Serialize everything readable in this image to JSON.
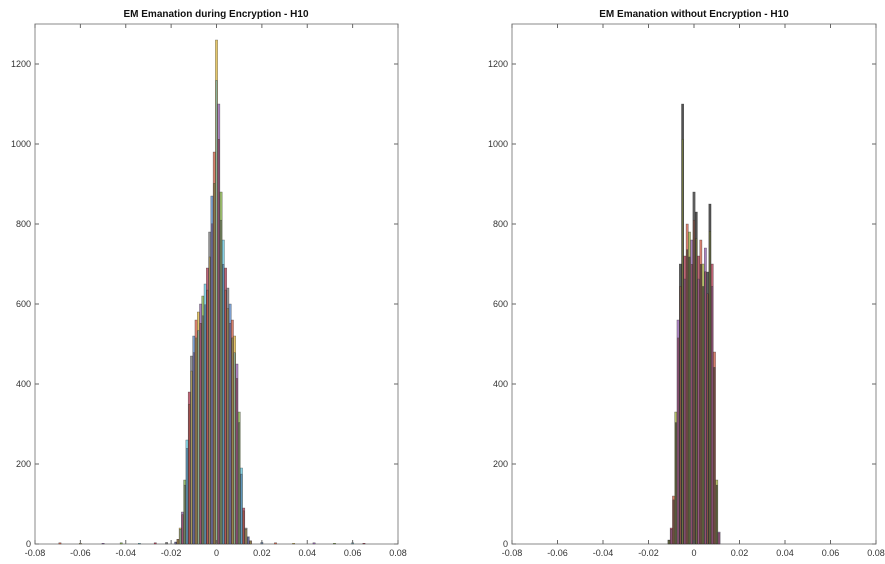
{
  "chart_data": [
    {
      "type": "histogram",
      "title": "EM Emanation during Encryption - H10",
      "xlim": [
        -0.08,
        0.08
      ],
      "ylim": [
        0,
        1300
      ],
      "xticks": [
        -0.08,
        -0.06,
        -0.04,
        -0.02,
        0,
        0.02,
        0.04,
        0.06,
        0.08
      ],
      "xtick_labels": [
        "-0.08",
        "-0.06",
        "-0.04",
        "-0.02",
        "0",
        "0.02",
        "0.04",
        "0.06",
        "0.08"
      ],
      "yticks": [
        0,
        200,
        400,
        600,
        800,
        1000,
        1200
      ],
      "ytick_labels": [
        "0",
        "200",
        "400",
        "600",
        "800",
        "1000",
        "1200"
      ],
      "grid": false,
      "overlaid_series_colors": [
        "#4f7fbf",
        "#c8553d",
        "#d9b33a",
        "#8d5aa8",
        "#7aa63c",
        "#5fc2d9",
        "#a8324a",
        "#6f6f6f"
      ],
      "bin_width": 0.001,
      "bins": [
        {
          "x": -0.018,
          "y": 5
        },
        {
          "x": -0.017,
          "y": 12
        },
        {
          "x": -0.016,
          "y": 40
        },
        {
          "x": -0.015,
          "y": 80
        },
        {
          "x": -0.014,
          "y": 160
        },
        {
          "x": -0.013,
          "y": 260
        },
        {
          "x": -0.012,
          "y": 380
        },
        {
          "x": -0.011,
          "y": 470
        },
        {
          "x": -0.01,
          "y": 520
        },
        {
          "x": -0.009,
          "y": 560
        },
        {
          "x": -0.008,
          "y": 580
        },
        {
          "x": -0.007,
          "y": 600
        },
        {
          "x": -0.006,
          "y": 620
        },
        {
          "x": -0.005,
          "y": 650
        },
        {
          "x": -0.004,
          "y": 690
        },
        {
          "x": -0.003,
          "y": 780
        },
        {
          "x": -0.002,
          "y": 870
        },
        {
          "x": -0.001,
          "y": 980
        },
        {
          "x": 0.0,
          "y": 1260
        },
        {
          "x": 0.001,
          "y": 1100
        },
        {
          "x": 0.002,
          "y": 880
        },
        {
          "x": 0.003,
          "y": 760
        },
        {
          "x": 0.004,
          "y": 690
        },
        {
          "x": 0.005,
          "y": 640
        },
        {
          "x": 0.006,
          "y": 600
        },
        {
          "x": 0.007,
          "y": 560
        },
        {
          "x": 0.008,
          "y": 520
        },
        {
          "x": 0.009,
          "y": 450
        },
        {
          "x": 0.01,
          "y": 330
        },
        {
          "x": 0.011,
          "y": 190
        },
        {
          "x": 0.012,
          "y": 90
        },
        {
          "x": 0.013,
          "y": 40
        },
        {
          "x": 0.014,
          "y": 18
        },
        {
          "x": 0.015,
          "y": 8
        }
      ],
      "tail_bins": [
        {
          "x": -0.069,
          "y": 3
        },
        {
          "x": -0.06,
          "y": 2
        },
        {
          "x": -0.05,
          "y": 2
        },
        {
          "x": -0.042,
          "y": 3
        },
        {
          "x": -0.034,
          "y": 2
        },
        {
          "x": -0.027,
          "y": 3
        },
        {
          "x": -0.022,
          "y": 4
        },
        {
          "x": 0.02,
          "y": 4
        },
        {
          "x": 0.026,
          "y": 3
        },
        {
          "x": 0.034,
          "y": 2
        },
        {
          "x": 0.043,
          "y": 3
        },
        {
          "x": 0.052,
          "y": 2
        },
        {
          "x": 0.06,
          "y": 3
        },
        {
          "x": 0.065,
          "y": 2
        }
      ]
    },
    {
      "type": "histogram",
      "title": "EM Emanation without Encryption - H10",
      "xlim": [
        -0.08,
        0.08
      ],
      "ylim": [
        0,
        1300
      ],
      "xticks": [
        -0.08,
        -0.06,
        -0.04,
        -0.02,
        0,
        0.02,
        0.04,
        0.06,
        0.08
      ],
      "xtick_labels": [
        "-0.08",
        "-0.06",
        "-0.04",
        "-0.02",
        "0",
        "0.02",
        "0.04",
        "0.06",
        "0.08"
      ],
      "yticks": [
        0,
        200,
        400,
        600,
        800,
        1000,
        1200
      ],
      "ytick_labels": [
        "0",
        "200",
        "400",
        "600",
        "800",
        "1000",
        "1200"
      ],
      "grid": false,
      "overlaid_series_colors": [
        "#1a1a1a",
        "#a8324a",
        "#c8553d",
        "#9aa83a",
        "#8d5aa8",
        "#2a2a2a"
      ],
      "bin_width": 0.001,
      "bins": [
        {
          "x": -0.011,
          "y": 10
        },
        {
          "x": -0.01,
          "y": 40
        },
        {
          "x": -0.009,
          "y": 120
        },
        {
          "x": -0.008,
          "y": 330
        },
        {
          "x": -0.007,
          "y": 560
        },
        {
          "x": -0.006,
          "y": 700
        },
        {
          "x": -0.005,
          "y": 1100
        },
        {
          "x": -0.004,
          "y": 720
        },
        {
          "x": -0.003,
          "y": 800
        },
        {
          "x": -0.002,
          "y": 780
        },
        {
          "x": -0.001,
          "y": 760
        },
        {
          "x": 0.0,
          "y": 880
        },
        {
          "x": 0.001,
          "y": 830
        },
        {
          "x": 0.002,
          "y": 720
        },
        {
          "x": 0.003,
          "y": 760
        },
        {
          "x": 0.004,
          "y": 700
        },
        {
          "x": 0.005,
          "y": 740
        },
        {
          "x": 0.006,
          "y": 680
        },
        {
          "x": 0.007,
          "y": 850
        },
        {
          "x": 0.008,
          "y": 700
        },
        {
          "x": 0.009,
          "y": 480
        },
        {
          "x": 0.01,
          "y": 160
        },
        {
          "x": 0.011,
          "y": 30
        }
      ],
      "tail_bins": []
    }
  ]
}
